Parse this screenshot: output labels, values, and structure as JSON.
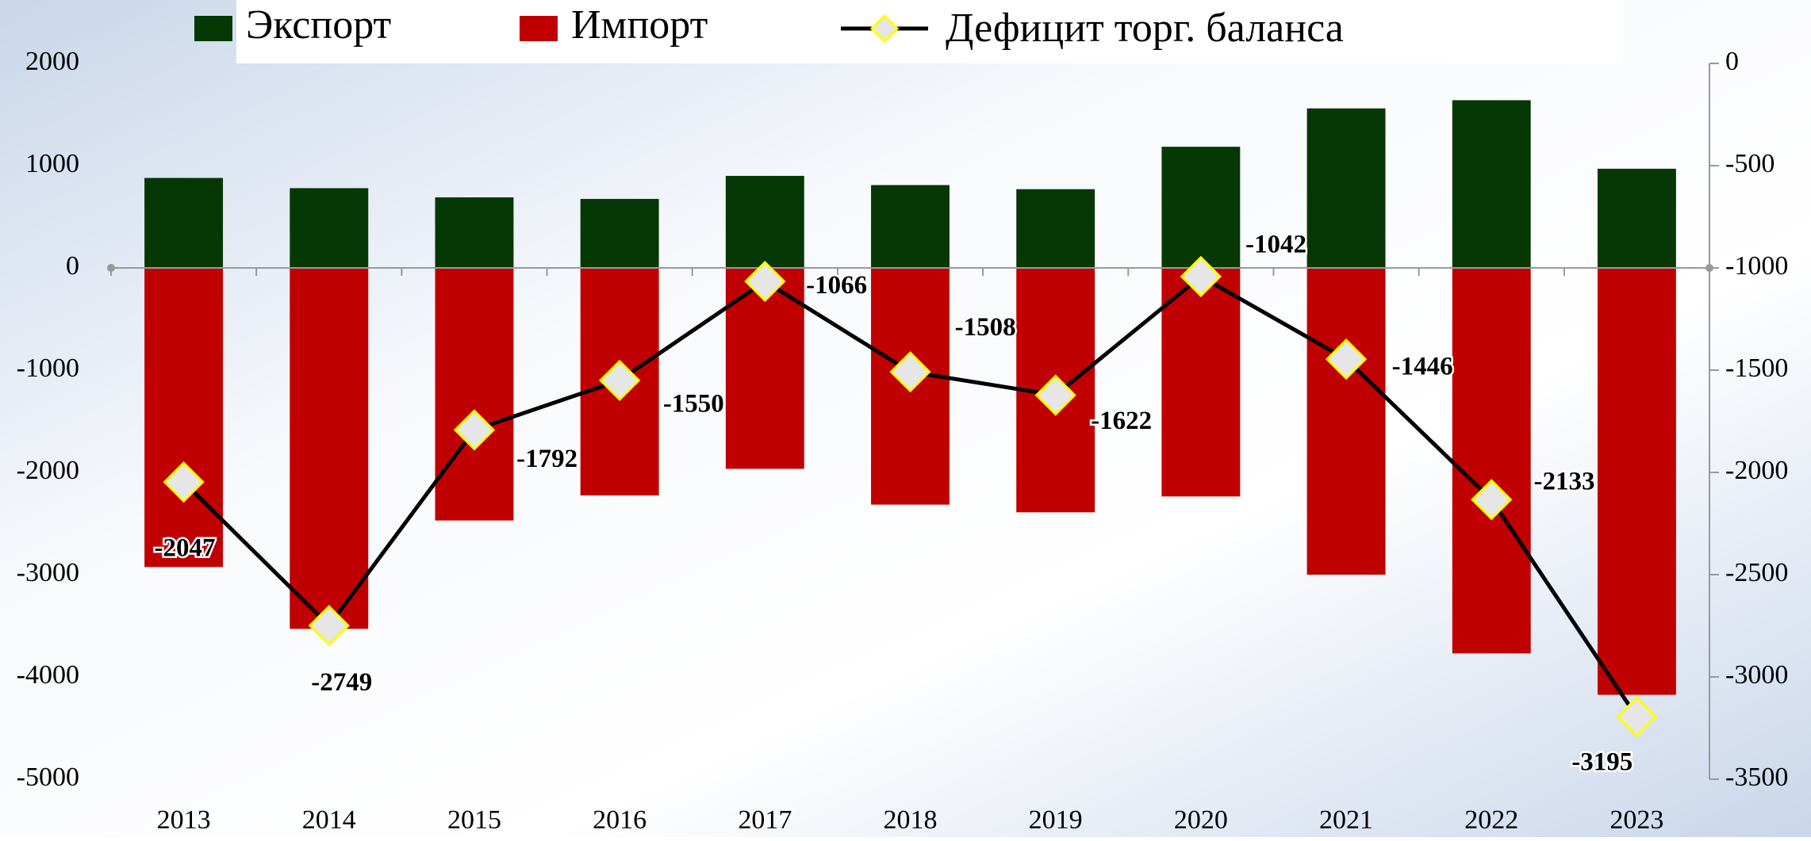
{
  "chart_data": {
    "type": "bar",
    "categories": [
      "2013",
      "2014",
      "2015",
      "2016",
      "2017",
      "2018",
      "2019",
      "2020",
      "2021",
      "2022",
      "2023"
    ],
    "series": [
      {
        "name": "Экспорт",
        "color": "#063806",
        "values": [
          880,
          780,
          690,
          675,
          900,
          810,
          770,
          1185,
          1560,
          1640,
          970
        ]
      },
      {
        "name": "Импорт",
        "color": "#c00000",
        "values": [
          -2925,
          -3530,
          -2470,
          -2225,
          -1965,
          -2315,
          -2390,
          -2235,
          -3000,
          -3770,
          -4175
        ]
      },
      {
        "name": "Дефицит торг. баланса",
        "type": "line",
        "axis": "y2",
        "color": "#000000",
        "marker_fill": "#e6e6e6",
        "marker_edge": "#ffff00",
        "values": [
          -2047,
          -2749,
          -1792,
          -1550,
          -1066,
          -1508,
          -1622,
          -1042,
          -1446,
          -2133,
          -3195
        ]
      }
    ],
    "ylim": [
      -5000,
      2000
    ],
    "yticks": [
      2000,
      1000,
      0,
      -1000,
      -2000,
      -3000,
      -4000,
      -5000
    ],
    "y2lim": [
      -3500,
      0
    ],
    "y2ticks": [
      0,
      -500,
      -1000,
      -1500,
      -2000,
      -2500,
      -3000,
      -3500
    ],
    "legend": "top"
  }
}
